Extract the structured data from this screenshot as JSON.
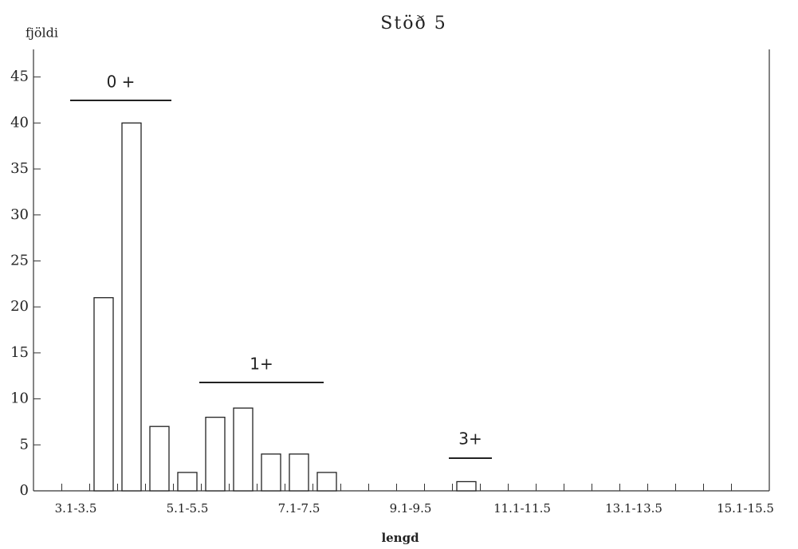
{
  "chart_data": {
    "type": "bar",
    "title": "Stöð 5",
    "y_label": "fjöldi",
    "x_label": "lengd",
    "categories": [
      "3.1-3.5",
      null,
      null,
      null,
      "5.1-5.5",
      null,
      null,
      null,
      "7.1-7.5",
      null,
      null,
      null,
      "9.1-9.5",
      null,
      null,
      null,
      "11.1-11.5",
      null,
      null,
      null,
      "13.1-13.5",
      null,
      null,
      null,
      "15.1-15.5"
    ],
    "values": [
      0,
      21,
      40,
      7,
      2,
      8,
      9,
      4,
      4,
      2,
      0,
      0,
      0,
      0,
      1,
      0,
      0,
      0,
      0,
      0,
      0,
      0,
      0,
      0,
      0
    ],
    "color": "#ffffff",
    "ylim": [
      0,
      48
    ],
    "yticks": [
      0,
      5,
      10,
      15,
      20,
      25,
      30,
      35,
      40,
      45
    ],
    "grid": false,
    "annotations": [
      "0 +",
      "1+",
      "3+"
    ]
  }
}
